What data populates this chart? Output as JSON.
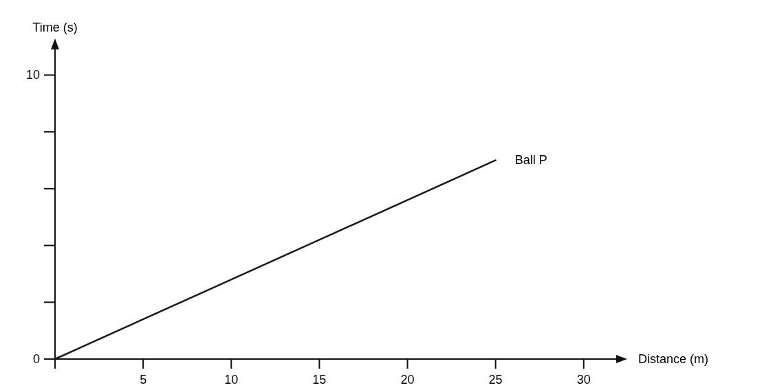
{
  "chart_data": {
    "type": "line",
    "xlabel": "Distance (m)",
    "ylabel": "Time (s)",
    "x": [
      0,
      25
    ],
    "series": [
      {
        "name": "Ball P",
        "color": "#1a1a1a",
        "values": [
          0,
          7
        ]
      }
    ],
    "xlim": [
      0,
      32
    ],
    "xticks": [
      {
        "value": 0,
        "label": null
      },
      5,
      10,
      15,
      20,
      25,
      30
    ],
    "ylim": [
      0,
      11
    ],
    "yticks": [
      0,
      {
        "value": 2,
        "label": null
      },
      {
        "value": 4,
        "label": null
      },
      {
        "value": 6,
        "label": null
      },
      {
        "value": 8,
        "label": null
      },
      10
    ],
    "grid": false,
    "legend": false,
    "marker": "none",
    "line_style": "solid"
  }
}
